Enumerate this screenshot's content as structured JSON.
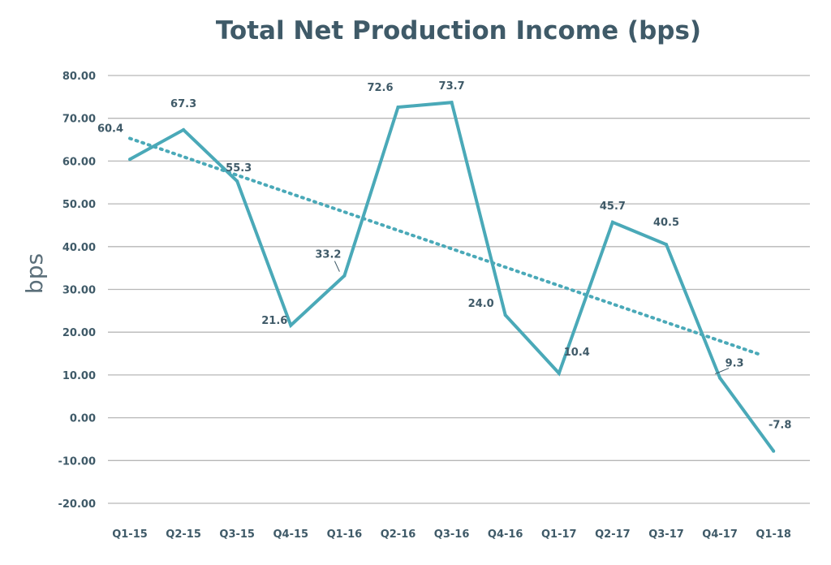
{
  "chart_data": {
    "type": "line",
    "title": "Total Net Production Income (bps)",
    "xlabel": "",
    "ylabel": "bps",
    "ylim": [
      -20,
      80
    ],
    "yticks": [
      "80.00",
      "70.00",
      "60.00",
      "50.00",
      "40.00",
      "30.00",
      "20.00",
      "10.00",
      "0.00",
      "-10.00",
      "-20.00"
    ],
    "ytick_values": [
      80,
      70,
      60,
      50,
      40,
      30,
      20,
      10,
      0,
      -10,
      -20
    ],
    "categories": [
      "Q1-15",
      "Q2-15",
      "Q3-15",
      "Q4-15",
      "Q1-16",
      "Q2-16",
      "Q3-16",
      "Q4-16",
      "Q1-17",
      "Q2-17",
      "Q3-17",
      "Q4-17",
      "Q1-18"
    ],
    "series": [
      {
        "values": [
          60.4,
          67.3,
          55.3,
          21.6,
          33.2,
          72.6,
          73.7,
          24.0,
          10.4,
          45.7,
          40.5,
          9.3,
          -7.8
        ],
        "data_labels": [
          "60.4",
          "67.3",
          "55.3",
          "21.6",
          "33.2",
          "72.6",
          "73.7",
          "24.0",
          "10.4",
          "45.7",
          "40.5",
          "9.3",
          "-7.8"
        ],
        "color": "#4aa9b8"
      }
    ],
    "trendline": {
      "style": "dotted",
      "start": 65.3,
      "end": 14.6,
      "color": "#4aa9b8"
    },
    "grid": true,
    "legend": "none",
    "colors": {
      "title": "#3f5a68",
      "labels": "#3f5a68",
      "negative_label": "#e0452b",
      "grid": "#b7b7b7"
    }
  }
}
